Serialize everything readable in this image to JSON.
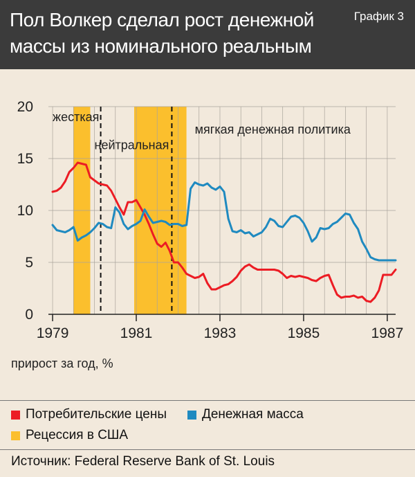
{
  "header": {
    "title": "Пол Волкер сделал рост денежной массы из номинального реальным",
    "badge": "График 3"
  },
  "colors": {
    "cpi": "#ec1c24",
    "money": "#1f8ac0",
    "recession": "#fbbf2d",
    "header_bg": "#3b3b3b",
    "background": "#f2e9dc"
  },
  "chart_data": {
    "type": "line",
    "x_range": [
      1978.9,
      1987.2
    ],
    "ylim": [
      0,
      20
    ],
    "yticks": [
      "0",
      "5",
      "10",
      "15",
      "20"
    ],
    "xticks": [
      {
        "value": 1979,
        "label": "1979"
      },
      {
        "value": 1981,
        "label": "1981"
      },
      {
        "value": 1983,
        "label": "1983"
      },
      {
        "value": 1985,
        "label": "1985"
      },
      {
        "value": 1987,
        "label": "1987"
      }
    ],
    "unit_label": "прирост за год, %",
    "recessions": [
      [
        1979.5,
        1979.9
      ],
      [
        1980.95,
        1982.2
      ]
    ],
    "policy_breaks": [
      1980.15,
      1981.85
    ],
    "policy_labels": [
      {
        "text": "жесткая",
        "x": 1979.0,
        "y": 18.6
      },
      {
        "text": "нейтральная",
        "x": 1980.0,
        "y": 15.9
      },
      {
        "text": "мягкая денежная политика",
        "x": 1982.4,
        "y": 17.4
      }
    ],
    "series": [
      {
        "name": "Потребительские цены",
        "key": "cpi",
        "x": [
          1979.0,
          1979.1,
          1979.2,
          1979.3,
          1979.4,
          1979.5,
          1979.6,
          1979.7,
          1979.8,
          1979.9,
          1980.0,
          1980.1,
          1980.2,
          1980.3,
          1980.4,
          1980.5,
          1980.6,
          1980.7,
          1980.8,
          1980.9,
          1981.0,
          1981.1,
          1981.2,
          1981.3,
          1981.4,
          1981.5,
          1981.6,
          1981.7,
          1981.8,
          1981.9,
          1982.0,
          1982.1,
          1982.2,
          1982.3,
          1982.4,
          1982.5,
          1982.6,
          1982.7,
          1982.8,
          1982.9,
          1983.0,
          1983.1,
          1983.2,
          1983.3,
          1983.4,
          1983.5,
          1983.6,
          1983.7,
          1983.8,
          1983.9,
          1984.0,
          1984.1,
          1984.2,
          1984.3,
          1984.4,
          1984.5,
          1984.6,
          1984.7,
          1984.8,
          1984.9,
          1985.0,
          1985.1,
          1985.2,
          1985.3,
          1985.4,
          1985.5,
          1985.6,
          1985.7,
          1985.8,
          1985.9,
          1986.0,
          1986.1,
          1986.2,
          1986.3,
          1986.4,
          1986.5,
          1986.6,
          1986.7,
          1986.8,
          1986.9,
          1987.0,
          1987.1,
          1987.2
        ],
        "values": [
          11.8,
          11.9,
          12.2,
          12.8,
          13.7,
          14.1,
          14.6,
          14.5,
          14.4,
          13.2,
          12.9,
          12.6,
          12.5,
          12.4,
          11.9,
          11.1,
          10.3,
          9.6,
          10.8,
          10.8,
          11.0,
          10.3,
          9.6,
          8.7,
          7.7,
          6.8,
          6.5,
          6.9,
          6.1,
          5.0,
          5.0,
          4.5,
          3.9,
          3.7,
          3.5,
          3.6,
          3.9,
          3.0,
          2.4,
          2.4,
          2.6,
          2.8,
          2.9,
          3.2,
          3.6,
          4.2,
          4.6,
          4.8,
          4.5,
          4.3,
          4.3,
          4.3,
          4.3,
          4.3,
          4.2,
          3.9,
          3.5,
          3.7,
          3.6,
          3.7,
          3.6,
          3.5,
          3.3,
          3.2,
          3.5,
          3.7,
          3.8,
          2.8,
          1.9,
          1.6,
          1.7,
          1.7,
          1.8,
          1.6,
          1.7,
          1.3,
          1.2,
          1.6,
          2.3,
          3.8,
          3.8,
          3.8,
          4.3
        ]
      },
      {
        "name": "Денежная масса",
        "key": "money",
        "x": [
          1979.0,
          1979.1,
          1979.2,
          1979.3,
          1979.4,
          1979.5,
          1979.6,
          1979.7,
          1979.8,
          1979.9,
          1980.0,
          1980.1,
          1980.2,
          1980.3,
          1980.4,
          1980.5,
          1980.6,
          1980.7,
          1980.8,
          1980.9,
          1981.0,
          1981.1,
          1981.2,
          1981.3,
          1981.4,
          1981.5,
          1981.6,
          1981.7,
          1981.8,
          1981.9,
          1982.0,
          1982.1,
          1982.2,
          1982.3,
          1982.4,
          1982.5,
          1982.6,
          1982.7,
          1982.8,
          1982.9,
          1983.0,
          1983.1,
          1983.2,
          1983.3,
          1983.4,
          1983.5,
          1983.6,
          1983.7,
          1983.8,
          1983.9,
          1984.0,
          1984.1,
          1984.2,
          1984.3,
          1984.4,
          1984.5,
          1984.6,
          1984.7,
          1984.8,
          1984.9,
          1985.0,
          1985.1,
          1985.2,
          1985.3,
          1985.4,
          1985.5,
          1985.6,
          1985.7,
          1985.8,
          1985.9,
          1986.0,
          1986.1,
          1986.2,
          1986.3,
          1986.4,
          1986.5,
          1986.6,
          1986.7,
          1986.8,
          1986.9,
          1987.0,
          1987.1,
          1987.2
        ],
        "values": [
          8.6,
          8.1,
          8.0,
          7.9,
          8.1,
          8.4,
          7.1,
          7.4,
          7.6,
          7.9,
          8.3,
          8.8,
          8.7,
          8.4,
          8.3,
          10.3,
          9.8,
          8.7,
          8.2,
          8.5,
          8.7,
          9.0,
          10.1,
          9.4,
          8.8,
          8.9,
          9.0,
          8.9,
          8.6,
          8.7,
          8.7,
          8.5,
          8.6,
          12.1,
          12.7,
          12.5,
          12.4,
          12.6,
          12.2,
          12.0,
          12.3,
          11.8,
          9.2,
          8.0,
          7.9,
          8.1,
          7.8,
          7.9,
          7.5,
          7.7,
          7.9,
          8.4,
          9.2,
          9.0,
          8.5,
          8.4,
          8.9,
          9.4,
          9.5,
          9.3,
          8.8,
          8.0,
          7.0,
          7.4,
          8.3,
          8.2,
          8.3,
          8.7,
          8.9,
          9.3,
          9.7,
          9.6,
          8.8,
          8.2,
          7.0,
          6.3,
          5.5,
          5.3,
          5.2,
          5.2,
          5.2,
          5.2,
          5.2
        ]
      }
    ]
  },
  "legend": [
    {
      "label": "Потребительские цены",
      "key": "cpi"
    },
    {
      "label": "Денежная масса",
      "key": "money"
    },
    {
      "label": "Рецессия в США",
      "key": "recession"
    }
  ],
  "source": "Источник: Federal Reserve Bank of St. Louis"
}
